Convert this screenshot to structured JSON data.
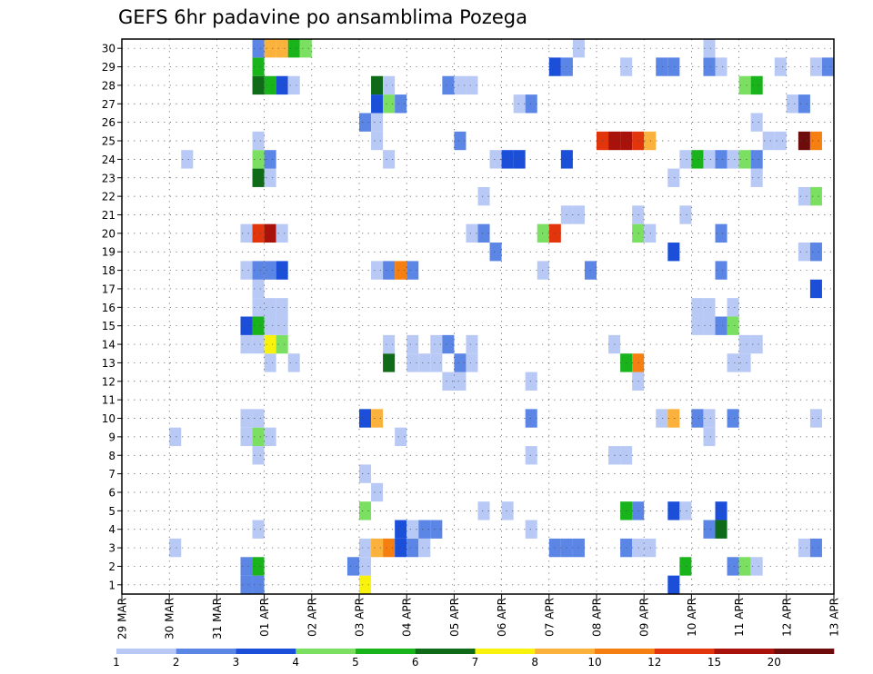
{
  "chart_data": {
    "type": "heatmap",
    "title": "GEFS 6hr padavine po ansamblima Pozega",
    "x_tick_labels": [
      "29 MAR",
      "30 MAR",
      "31 MAR",
      "01 APR",
      "02 APR",
      "03 APR",
      "04 APR",
      "05 APR",
      "06 APR",
      "07 APR",
      "08 APR",
      "09 APR",
      "10 APR",
      "11 APR",
      "12 APR",
      "13 APR"
    ],
    "x_steps": 60,
    "y_members": [
      "1",
      "2",
      "3",
      "4",
      "5",
      "6",
      "7",
      "8",
      "9",
      "10",
      "11",
      "12",
      "13",
      "14",
      "15",
      "16",
      "17",
      "18",
      "19",
      "20",
      "21",
      "22",
      "23",
      "24",
      "25",
      "26",
      "27",
      "28",
      "29",
      "30"
    ],
    "grid": "dotted",
    "colorbar": {
      "labels": [
        "1",
        "2",
        "3",
        "4",
        "5",
        "6",
        "7",
        "8",
        "10",
        "12",
        "15",
        "20"
      ],
      "colors": [
        "#b9c9f5",
        "#5b86e6",
        "#1c4fd9",
        "#7be062",
        "#19b41c",
        "#0f6b18",
        "#f8f20c",
        "#fbb23c",
        "#f57f10",
        "#e2350c",
        "#a9120b",
        "#6e0c0c"
      ]
    },
    "cells": [
      [
        11,
        1,
        "#5b86e6"
      ],
      [
        12,
        1,
        "#5b86e6"
      ],
      [
        21,
        1,
        "#f8f20c"
      ],
      [
        47,
        1,
        "#1c4fd9"
      ],
      [
        11,
        2,
        "#5b86e6"
      ],
      [
        12,
        2,
        "#19b41c"
      ],
      [
        20,
        2,
        "#5b86e6"
      ],
      [
        21,
        2,
        "#b9c9f5"
      ],
      [
        48,
        2,
        "#19b41c"
      ],
      [
        52,
        2,
        "#5b86e6"
      ],
      [
        53,
        2,
        "#7be062"
      ],
      [
        54,
        2,
        "#b9c9f5"
      ],
      [
        5,
        3,
        "#b9c9f5"
      ],
      [
        21,
        3,
        "#b9c9f5"
      ],
      [
        22,
        3,
        "#fbb23c"
      ],
      [
        23,
        3,
        "#f57f10"
      ],
      [
        24,
        3,
        "#1c4fd9"
      ],
      [
        25,
        3,
        "#5b86e6"
      ],
      [
        26,
        3,
        "#b9c9f5"
      ],
      [
        37,
        3,
        "#5b86e6"
      ],
      [
        38,
        3,
        "#5b86e6"
      ],
      [
        39,
        3,
        "#5b86e6"
      ],
      [
        43,
        3,
        "#5b86e6"
      ],
      [
        44,
        3,
        "#b9c9f5"
      ],
      [
        45,
        3,
        "#b9c9f5"
      ],
      [
        58,
        3,
        "#b9c9f5"
      ],
      [
        59,
        3,
        "#5b86e6"
      ],
      [
        12,
        4,
        "#b9c9f5"
      ],
      [
        24,
        4,
        "#1c4fd9"
      ],
      [
        25,
        4,
        "#b9c9f5"
      ],
      [
        26,
        4,
        "#5b86e6"
      ],
      [
        27,
        4,
        "#5b86e6"
      ],
      [
        35,
        4,
        "#b9c9f5"
      ],
      [
        50,
        4,
        "#5b86e6"
      ],
      [
        51,
        4,
        "#0f6b18"
      ],
      [
        21,
        5,
        "#7be062"
      ],
      [
        31,
        5,
        "#b9c9f5"
      ],
      [
        33,
        5,
        "#b9c9f5"
      ],
      [
        43,
        5,
        "#19b41c"
      ],
      [
        44,
        5,
        "#5b86e6"
      ],
      [
        47,
        5,
        "#1c4fd9"
      ],
      [
        48,
        5,
        "#b9c9f5"
      ],
      [
        51,
        5,
        "#1c4fd9"
      ],
      [
        22,
        6,
        "#b9c9f5"
      ],
      [
        21,
        7,
        "#b9c9f5"
      ],
      [
        12,
        8,
        "#b9c9f5"
      ],
      [
        35,
        8,
        "#b9c9f5"
      ],
      [
        42,
        8,
        "#b9c9f5"
      ],
      [
        43,
        8,
        "#b9c9f5"
      ],
      [
        5,
        9,
        "#b9c9f5"
      ],
      [
        11,
        9,
        "#b9c9f5"
      ],
      [
        12,
        9,
        "#7be062"
      ],
      [
        13,
        9,
        "#b9c9f5"
      ],
      [
        24,
        9,
        "#b9c9f5"
      ],
      [
        50,
        9,
        "#b9c9f5"
      ],
      [
        11,
        10,
        "#b9c9f5"
      ],
      [
        12,
        10,
        "#b9c9f5"
      ],
      [
        21,
        10,
        "#1c4fd9"
      ],
      [
        22,
        10,
        "#fbb23c"
      ],
      [
        35,
        10,
        "#5b86e6"
      ],
      [
        46,
        10,
        "#b9c9f5"
      ],
      [
        47,
        10,
        "#fbb23c"
      ],
      [
        49,
        10,
        "#5b86e6"
      ],
      [
        50,
        10,
        "#b9c9f5"
      ],
      [
        52,
        10,
        "#5b86e6"
      ],
      [
        59,
        10,
        "#b9c9f5"
      ],
      [
        28,
        12,
        "#b9c9f5"
      ],
      [
        29,
        12,
        "#b9c9f5"
      ],
      [
        35,
        12,
        "#b9c9f5"
      ],
      [
        44,
        12,
        "#b9c9f5"
      ],
      [
        13,
        13,
        "#b9c9f5"
      ],
      [
        15,
        13,
        "#b9c9f5"
      ],
      [
        23,
        13,
        "#0f6b18"
      ],
      [
        25,
        13,
        "#b9c9f5"
      ],
      [
        26,
        13,
        "#b9c9f5"
      ],
      [
        27,
        13,
        "#b9c9f5"
      ],
      [
        29,
        13,
        "#5b86e6"
      ],
      [
        30,
        13,
        "#b9c9f5"
      ],
      [
        43,
        13,
        "#19b41c"
      ],
      [
        44,
        13,
        "#f57f10"
      ],
      [
        52,
        13,
        "#b9c9f5"
      ],
      [
        53,
        13,
        "#b9c9f5"
      ],
      [
        11,
        14,
        "#b9c9f5"
      ],
      [
        12,
        14,
        "#b9c9f5"
      ],
      [
        13,
        14,
        "#f8f20c"
      ],
      [
        14,
        14,
        "#7be062"
      ],
      [
        23,
        14,
        "#b9c9f5"
      ],
      [
        25,
        14,
        "#b9c9f5"
      ],
      [
        27,
        14,
        "#b9c9f5"
      ],
      [
        28,
        14,
        "#5b86e6"
      ],
      [
        30,
        14,
        "#b9c9f5"
      ],
      [
        42,
        14,
        "#b9c9f5"
      ],
      [
        53,
        14,
        "#b9c9f5"
      ],
      [
        54,
        14,
        "#b9c9f5"
      ],
      [
        11,
        15,
        "#1c4fd9"
      ],
      [
        12,
        15,
        "#19b41c"
      ],
      [
        13,
        15,
        "#b9c9f5"
      ],
      [
        14,
        15,
        "#b9c9f5"
      ],
      [
        49,
        15,
        "#b9c9f5"
      ],
      [
        50,
        15,
        "#b9c9f5"
      ],
      [
        51,
        15,
        "#5b86e6"
      ],
      [
        52,
        15,
        "#7be062"
      ],
      [
        12,
        16,
        "#b9c9f5"
      ],
      [
        13,
        16,
        "#b9c9f5"
      ],
      [
        14,
        16,
        "#b9c9f5"
      ],
      [
        49,
        16,
        "#b9c9f5"
      ],
      [
        50,
        16,
        "#b9c9f5"
      ],
      [
        52,
        16,
        "#b9c9f5"
      ],
      [
        12,
        17,
        "#b9c9f5"
      ],
      [
        59,
        17,
        "#1c4fd9"
      ],
      [
        11,
        18,
        "#b9c9f5"
      ],
      [
        12,
        18,
        "#5b86e6"
      ],
      [
        13,
        18,
        "#5b86e6"
      ],
      [
        14,
        18,
        "#1c4fd9"
      ],
      [
        22,
        18,
        "#b9c9f5"
      ],
      [
        23,
        18,
        "#5b86e6"
      ],
      [
        24,
        18,
        "#f57f10"
      ],
      [
        25,
        18,
        "#5b86e6"
      ],
      [
        36,
        18,
        "#b9c9f5"
      ],
      [
        40,
        18,
        "#5b86e6"
      ],
      [
        51,
        18,
        "#5b86e6"
      ],
      [
        32,
        19,
        "#5b86e6"
      ],
      [
        47,
        19,
        "#1c4fd9"
      ],
      [
        58,
        19,
        "#b9c9f5"
      ],
      [
        59,
        19,
        "#5b86e6"
      ],
      [
        11,
        20,
        "#b9c9f5"
      ],
      [
        12,
        20,
        "#e2350c"
      ],
      [
        13,
        20,
        "#a9120b"
      ],
      [
        14,
        20,
        "#b9c9f5"
      ],
      [
        30,
        20,
        "#b9c9f5"
      ],
      [
        31,
        20,
        "#5b86e6"
      ],
      [
        36,
        20,
        "#7be062"
      ],
      [
        37,
        20,
        "#e2350c"
      ],
      [
        44,
        20,
        "#7be062"
      ],
      [
        45,
        20,
        "#b9c9f5"
      ],
      [
        51,
        20,
        "#5b86e6"
      ],
      [
        38,
        21,
        "#b9c9f5"
      ],
      [
        39,
        21,
        "#b9c9f5"
      ],
      [
        44,
        21,
        "#b9c9f5"
      ],
      [
        48,
        21,
        "#b9c9f5"
      ],
      [
        31,
        22,
        "#b9c9f5"
      ],
      [
        58,
        22,
        "#b9c9f5"
      ],
      [
        59,
        22,
        "#7be062"
      ],
      [
        12,
        23,
        "#0f6b18"
      ],
      [
        13,
        23,
        "#b9c9f5"
      ],
      [
        47,
        23,
        "#b9c9f5"
      ],
      [
        54,
        23,
        "#b9c9f5"
      ],
      [
        6,
        24,
        "#b9c9f5"
      ],
      [
        12,
        24,
        "#7be062"
      ],
      [
        13,
        24,
        "#5b86e6"
      ],
      [
        23,
        24,
        "#b9c9f5"
      ],
      [
        32,
        24,
        "#b9c9f5"
      ],
      [
        33,
        24,
        "#1c4fd9"
      ],
      [
        34,
        24,
        "#1c4fd9"
      ],
      [
        38,
        24,
        "#1c4fd9"
      ],
      [
        48,
        24,
        "#b9c9f5"
      ],
      [
        49,
        24,
        "#19b41c"
      ],
      [
        50,
        24,
        "#b9c9f5"
      ],
      [
        51,
        24,
        "#5b86e6"
      ],
      [
        52,
        24,
        "#b9c9f5"
      ],
      [
        53,
        24,
        "#7be062"
      ],
      [
        54,
        24,
        "#5b86e6"
      ],
      [
        12,
        25,
        "#b9c9f5"
      ],
      [
        22,
        25,
        "#b9c9f5"
      ],
      [
        29,
        25,
        "#5b86e6"
      ],
      [
        41,
        25,
        "#e2350c"
      ],
      [
        42,
        25,
        "#a9120b"
      ],
      [
        43,
        25,
        "#a9120b"
      ],
      [
        44,
        25,
        "#e2350c"
      ],
      [
        45,
        25,
        "#fbb23c"
      ],
      [
        55,
        25,
        "#b9c9f5"
      ],
      [
        56,
        25,
        "#b9c9f5"
      ],
      [
        58,
        25,
        "#6e0c0c"
      ],
      [
        59,
        25,
        "#f57f10"
      ],
      [
        21,
        26,
        "#5b86e6"
      ],
      [
        22,
        26,
        "#b9c9f5"
      ],
      [
        54,
        26,
        "#b9c9f5"
      ],
      [
        22,
        27,
        "#1c4fd9"
      ],
      [
        23,
        27,
        "#7be062"
      ],
      [
        24,
        27,
        "#5b86e6"
      ],
      [
        34,
        27,
        "#b9c9f5"
      ],
      [
        35,
        27,
        "#5b86e6"
      ],
      [
        57,
        27,
        "#b9c9f5"
      ],
      [
        58,
        27,
        "#5b86e6"
      ],
      [
        12,
        28,
        "#0f6b18"
      ],
      [
        13,
        28,
        "#19b41c"
      ],
      [
        14,
        28,
        "#1c4fd9"
      ],
      [
        15,
        28,
        "#b9c9f5"
      ],
      [
        22,
        28,
        "#0f6b18"
      ],
      [
        23,
        28,
        "#b9c9f5"
      ],
      [
        28,
        28,
        "#5b86e6"
      ],
      [
        29,
        28,
        "#b9c9f5"
      ],
      [
        30,
        28,
        "#b9c9f5"
      ],
      [
        53,
        28,
        "#7be062"
      ],
      [
        54,
        28,
        "#19b41c"
      ],
      [
        12,
        29,
        "#19b41c"
      ],
      [
        37,
        29,
        "#1c4fd9"
      ],
      [
        38,
        29,
        "#5b86e6"
      ],
      [
        43,
        29,
        "#b9c9f5"
      ],
      [
        46,
        29,
        "#5b86e6"
      ],
      [
        47,
        29,
        "#5b86e6"
      ],
      [
        50,
        29,
        "#5b86e6"
      ],
      [
        51,
        29,
        "#b9c9f5"
      ],
      [
        56,
        29,
        "#b9c9f5"
      ],
      [
        59,
        29,
        "#b9c9f5"
      ],
      [
        60,
        29,
        "#5b86e6"
      ],
      [
        12,
        30,
        "#5b86e6"
      ],
      [
        13,
        30,
        "#fbb23c"
      ],
      [
        14,
        30,
        "#fbb23c"
      ],
      [
        15,
        30,
        "#19b41c"
      ],
      [
        16,
        30,
        "#7be062"
      ],
      [
        39,
        30,
        "#b9c9f5"
      ],
      [
        50,
        30,
        "#b9c9f5"
      ]
    ]
  }
}
